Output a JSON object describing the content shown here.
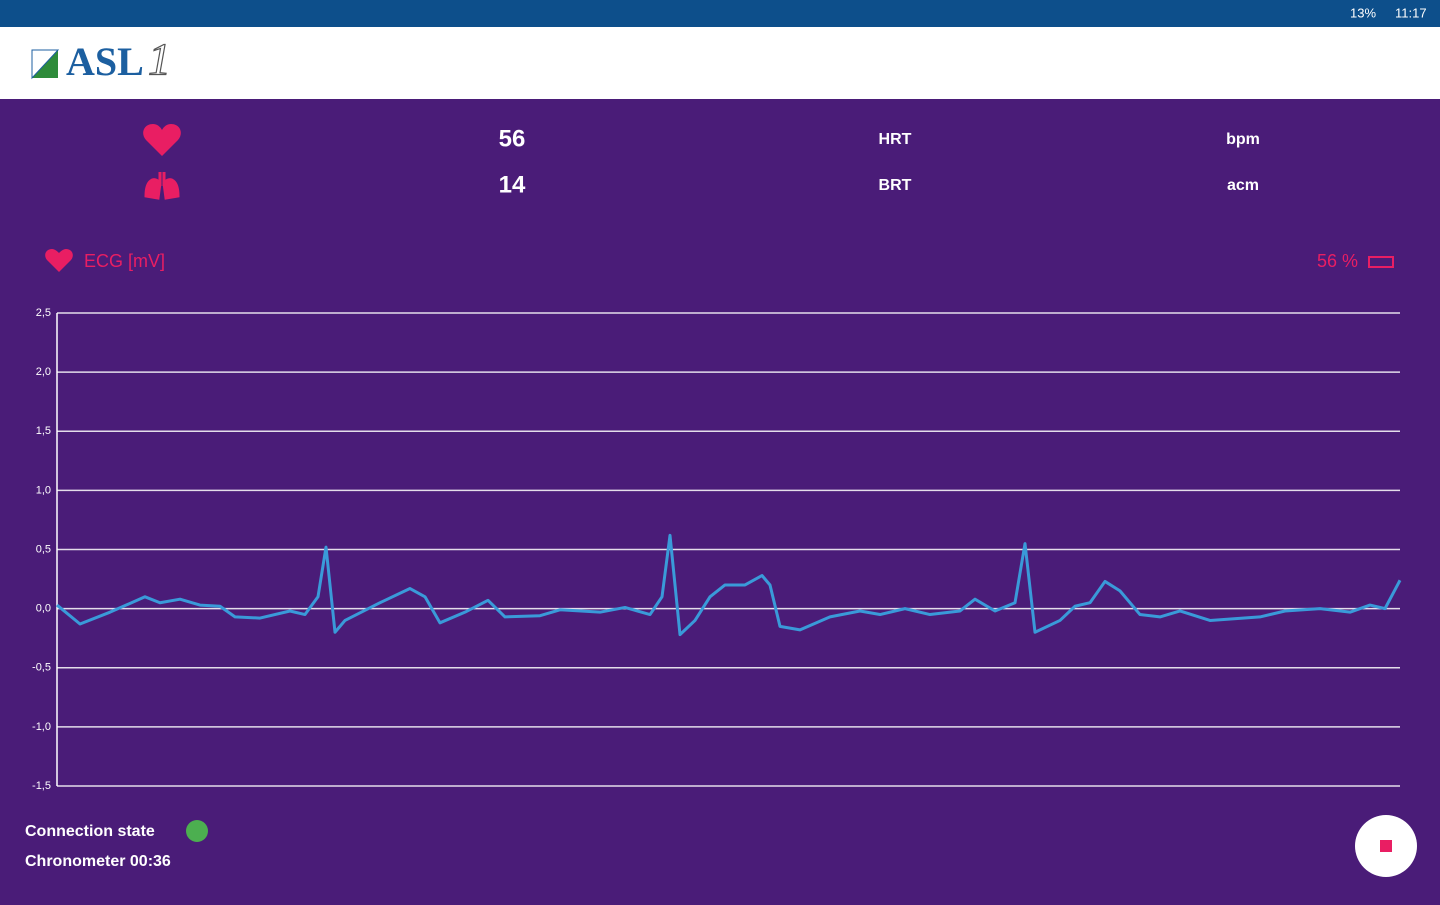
{
  "status_bar": {
    "battery": "13%",
    "time": "11:17"
  },
  "header": {
    "logo": "ASL",
    "logo_number": "1"
  },
  "vitals": [
    {
      "value": 56,
      "label": "HRT",
      "unit": "bpm"
    },
    {
      "value": 14,
      "label": "BRT",
      "unit": "acm"
    }
  ],
  "chart_data": {
    "type": "line",
    "title": "ECG [mV]",
    "battery_label": "56 %",
    "xlim": [
      0,
      1343
    ],
    "ylim": [
      -1.5,
      2.5
    ],
    "yticks": [
      {
        "value": -1.5,
        "label": "-1,5"
      },
      {
        "value": -1,
        "label": "-1,0"
      },
      {
        "value": -0.5,
        "label": "-0,5"
      },
      {
        "value": 0,
        "label": "0,0"
      },
      {
        "value": 0.5,
        "label": "0,5"
      },
      {
        "value": 1,
        "label": "1,0"
      },
      {
        "value": 1.5,
        "label": "1,5"
      },
      {
        "value": 2,
        "label": "2,0"
      },
      {
        "value": 2.5,
        "label": "2,5"
      }
    ],
    "grid": true,
    "x": [
      0,
      23,
      53,
      88,
      103,
      123,
      143,
      163,
      178,
      203,
      233,
      248,
      261,
      269,
      278,
      288,
      323,
      353,
      368,
      383,
      408,
      431,
      448,
      483,
      503,
      543,
      568,
      593,
      605,
      613,
      623,
      638,
      653,
      668,
      688,
      705,
      713,
      723,
      743,
      773,
      803,
      823,
      848,
      873,
      903,
      918,
      938,
      958,
      968,
      978,
      1003,
      1018,
      1033,
      1048,
      1063,
      1083,
      1103,
      1123,
      1153,
      1203,
      1228,
      1263,
      1293,
      1313,
      1328,
      1343
    ],
    "series": [
      {
        "name": "ECG",
        "color": "#3a9ad9",
        "values": [
          0.03,
          -0.13,
          -0.03,
          0.1,
          0.05,
          0.08,
          0.03,
          0.02,
          -0.07,
          -0.08,
          -0.02,
          -0.05,
          0.1,
          0.52,
          -0.2,
          -0.1,
          0.05,
          0.17,
          0.1,
          -0.12,
          -0.03,
          0.07,
          -0.07,
          -0.06,
          -0.01,
          -0.03,
          0.01,
          -0.05,
          0.1,
          0.62,
          -0.22,
          -0.1,
          0.1,
          0.2,
          0.2,
          0.28,
          0.2,
          -0.15,
          -0.18,
          -0.07,
          -0.02,
          -0.05,
          0.0,
          -0.05,
          -0.02,
          0.08,
          -0.02,
          0.05,
          0.55,
          -0.2,
          -0.1,
          0.02,
          0.05,
          0.23,
          0.15,
          -0.05,
          -0.07,
          -0.02,
          -0.1,
          -0.07,
          -0.02,
          0.0,
          -0.03,
          0.03,
          0.0,
          0.24
        ]
      }
    ]
  },
  "footer": {
    "connection_label": "Connection state",
    "chronometer": "Chronometer 00:36"
  }
}
